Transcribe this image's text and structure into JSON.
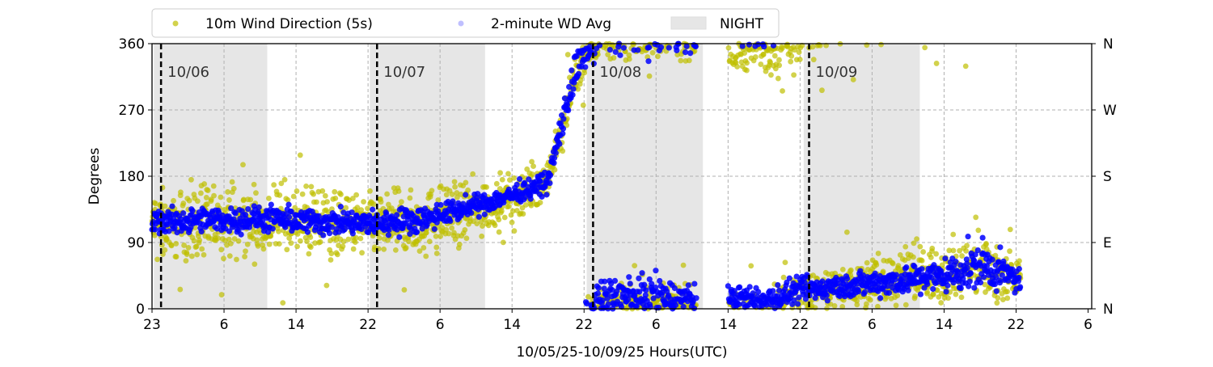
{
  "chart_data": {
    "type": "scatter",
    "xlabel": "10/05/25-10/09/25  Hours(UTC)",
    "ylabel": "Degrees",
    "ylim": [
      0,
      360
    ],
    "xlim_hours_since_start": [
      0,
      104.4
    ],
    "yticks": [
      0,
      90,
      180,
      270,
      360
    ],
    "ytick_labels": [
      "0",
      "90",
      "180",
      "270",
      "360"
    ],
    "right_ytick_labels": [
      "N",
      "E",
      "S",
      "W",
      "N"
    ],
    "xticks_hours": [
      0,
      8,
      16,
      24,
      32,
      40,
      48,
      56,
      64,
      72,
      80,
      88,
      96,
      104
    ],
    "xtick_labels": [
      "23",
      "6",
      "14",
      "22",
      "6",
      "14",
      "22",
      "6",
      "14",
      "22",
      "6",
      "14",
      "22",
      "6"
    ],
    "grid": true,
    "legend": {
      "placement": "top-left-outside",
      "entries": [
        "10m Wind Direction (5s)",
        "2-minute WD Avg",
        "NIGHT"
      ]
    },
    "day_markers": [
      {
        "label": "10/06",
        "hour": 1
      },
      {
        "label": "10/07",
        "hour": 25
      },
      {
        "label": "10/08",
        "hour": 49
      },
      {
        "label": "10/09",
        "hour": 73
      }
    ],
    "night_periods_hours": [
      [
        0.2,
        12.8
      ],
      [
        24.2,
        37
      ],
      [
        48.3,
        61.2
      ],
      [
        72.4,
        85.3
      ]
    ],
    "series": [
      {
        "name": "10m Wind Direction (5s)",
        "color": "#bfbf00",
        "keyframes_hour": [
          0,
          12,
          24,
          30,
          36,
          40,
          44,
          45.5,
          47,
          48.5,
          50,
          56,
          60.5,
          64,
          68,
          72,
          80,
          88,
          92,
          96
        ],
        "center_deg": [
          115,
          118,
          112,
          118,
          135,
          150,
          175,
          240,
          320,
          350,
          365,
          365,
          365,
          350,
          355,
          375,
          395,
          410,
          420,
          400
        ],
        "spread_deg": [
          45,
          45,
          45,
          45,
          40,
          30,
          25,
          30,
          30,
          25,
          25,
          25,
          25,
          30,
          35,
          35,
          35,
          40,
          40,
          30
        ],
        "gaps_hours": [
          [
            60.5,
            64
          ]
        ],
        "end_hour": 96.5
      },
      {
        "name": "2-minute WD Avg",
        "color": "#0000ff",
        "keyframes_hour": [
          0,
          12,
          24,
          30,
          36,
          40,
          44,
          45.5,
          47,
          48.5,
          50,
          56,
          60.5,
          64,
          68,
          72,
          80,
          88,
          92,
          96
        ],
        "center_deg": [
          118,
          122,
          115,
          122,
          140,
          155,
          172,
          250,
          320,
          355,
          375,
          375,
          370,
          375,
          370,
          385,
          395,
          405,
          420,
          400
        ],
        "spread_deg": [
          15,
          15,
          15,
          15,
          12,
          12,
          12,
          20,
          25,
          15,
          25,
          25,
          20,
          15,
          15,
          15,
          15,
          20,
          30,
          15
        ],
        "gaps_hours": [
          [
            60.5,
            64
          ]
        ],
        "end_hour": 96.5
      }
    ]
  }
}
